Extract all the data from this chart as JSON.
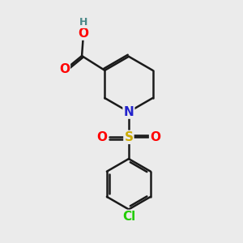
{
  "bg_color": "#ebebeb",
  "bond_color": "#1a1a1a",
  "bond_width": 1.8,
  "atom_colors": {
    "O": "#ff0000",
    "N": "#2222cc",
    "S": "#ccaa00",
    "Cl": "#22cc00",
    "H": "#4a8888",
    "C": "#1a1a1a"
  },
  "font_size": 11,
  "font_size_h": 9
}
